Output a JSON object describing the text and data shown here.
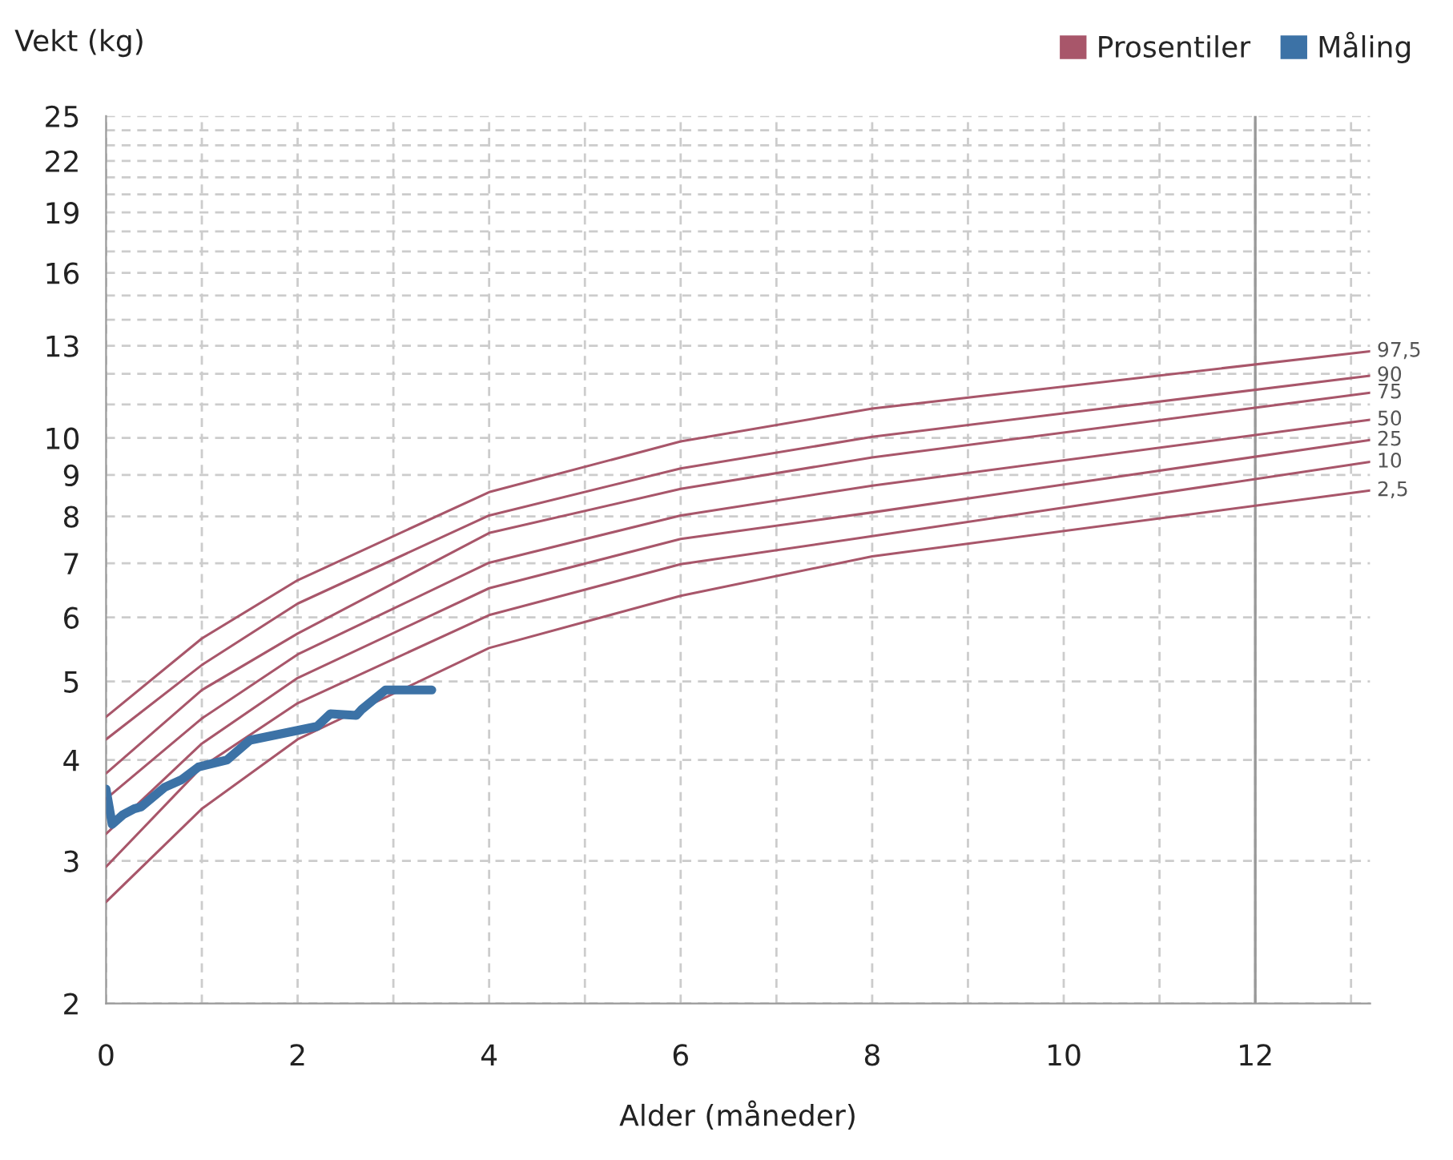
{
  "chart_data": {
    "type": "line",
    "xlabel": "Alder (måneder)",
    "ylabel": "Vekt (kg)",
    "legend_title": "Prosentiler",
    "legend": "top right",
    "grid": true,
    "log": "y",
    "marker": "none",
    "line_style": "solid",
    "xlim": [
      0,
      13.2
    ],
    "xticks": [
      0,
      {
        "value": 1,
        "label": null
      },
      2,
      {
        "value": 3,
        "label": null
      },
      4,
      {
        "value": 5,
        "label": null
      },
      6,
      {
        "value": 7,
        "label": null
      },
      8,
      {
        "value": 9,
        "label": null
      },
      10,
      {
        "value": 11,
        "label": null
      },
      12,
      {
        "value": 13,
        "label": null
      }
    ],
    "ylim": [
      2,
      25
    ],
    "yticks": [
      2,
      3,
      4,
      5,
      6,
      7,
      8,
      9,
      10,
      {
        "value": 11,
        "label": null
      },
      {
        "value": 12,
        "label": null
      },
      13,
      {
        "value": 14,
        "label": null
      },
      {
        "value": 15,
        "label": null
      },
      16,
      {
        "value": 17,
        "label": null
      },
      {
        "value": 18,
        "label": null
      },
      19,
      {
        "value": 20,
        "label": null
      },
      {
        "value": 21,
        "label": null
      },
      22,
      {
        "value": 23,
        "label": null
      },
      {
        "value": 24,
        "label": null
      },
      25
    ],
    "ref_lines": [
      {
        "axis": "x",
        "value": 12,
        "color": "#999999"
      }
    ],
    "x": [
      0,
      1,
      2,
      4,
      6,
      8,
      13.2
    ],
    "series": [
      {
        "name": "97,5",
        "color": "#a8566a",
        "values": [
          4.52,
          5.65,
          6.67,
          8.57,
          9.9,
          10.87,
          12.8
        ]
      },
      {
        "name": "90",
        "color": "#a8566a",
        "values": [
          4.24,
          5.24,
          6.24,
          8.02,
          9.17,
          10.03,
          11.94
        ]
      },
      {
        "name": "75",
        "color": "#a8566a",
        "values": [
          3.85,
          4.88,
          5.73,
          7.63,
          8.65,
          9.46,
          11.37
        ]
      },
      {
        "name": "50",
        "color": "#a8566a",
        "values": [
          3.58,
          4.5,
          5.4,
          7.01,
          8.02,
          8.73,
          10.53
        ]
      },
      {
        "name": "25",
        "color": "#a8566a",
        "values": [
          3.24,
          4.19,
          5.05,
          6.52,
          7.5,
          8.09,
          9.94
        ]
      },
      {
        "name": "10",
        "color": "#a8566a",
        "values": [
          2.95,
          3.92,
          4.7,
          6.04,
          6.98,
          7.56,
          9.34
        ]
      },
      {
        "name": "2,5",
        "color": "#a8566a",
        "values": [
          2.67,
          3.48,
          4.24,
          5.5,
          6.38,
          7.14,
          8.61
        ]
      },
      {
        "name": "Måling",
        "color": "#3c72a6",
        "x": [
          0,
          0.064,
          0.174,
          0.293,
          0.368,
          0.612,
          0.787,
          0.965,
          1.264,
          1.502,
          2.203,
          2.342,
          2.613,
          2.672,
          2.918,
          3.401
        ],
        "values": [
          3.68,
          3.33,
          3.42,
          3.48,
          3.5,
          3.7,
          3.78,
          3.92,
          4.0,
          4.23,
          4.4,
          4.56,
          4.54,
          4.62,
          4.88,
          4.88
        ]
      }
    ]
  }
}
